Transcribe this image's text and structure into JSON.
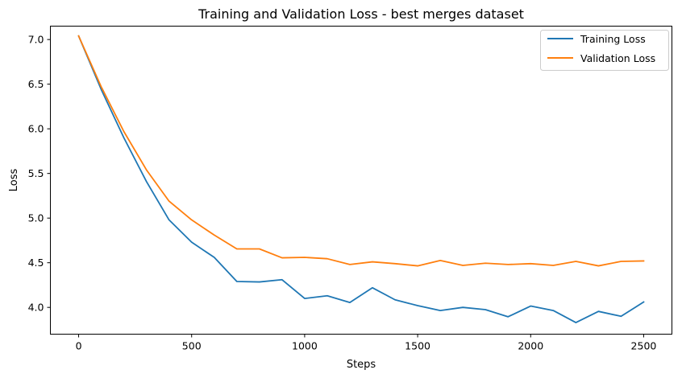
{
  "chart_data": {
    "type": "line",
    "title": "Training and Validation Loss - best merges dataset",
    "xlabel": "Steps",
    "ylabel": "Loss",
    "xlim": [
      -125,
      2625
    ],
    "ylim": [
      3.7,
      7.15
    ],
    "xticks": [
      0,
      500,
      1000,
      1500,
      2000,
      2500
    ],
    "yticks": [
      4.0,
      4.5,
      5.0,
      5.5,
      6.0,
      6.5,
      7.0
    ],
    "xtick_labels": [
      "0",
      "500",
      "1000",
      "1500",
      "2000",
      "2500"
    ],
    "ytick_labels": [
      "4.0",
      "4.5",
      "5.0",
      "5.5",
      "6.0",
      "6.5",
      "7.0"
    ],
    "grid": false,
    "legend_position": "upper-right",
    "x": [
      0,
      100,
      200,
      300,
      400,
      500,
      600,
      700,
      800,
      900,
      1000,
      1100,
      1200,
      1300,
      1400,
      1500,
      1600,
      1700,
      1800,
      1900,
      2000,
      2100,
      2200,
      2300,
      2400,
      2500
    ],
    "series": [
      {
        "name": "Training Loss",
        "color": "#1f77b4",
        "values": [
          7.04,
          6.44,
          5.9,
          5.41,
          4.98,
          4.73,
          4.56,
          4.29,
          4.285,
          4.31,
          4.1,
          4.13,
          4.055,
          4.22,
          4.085,
          4.02,
          3.965,
          4.0,
          3.975,
          3.895,
          4.015,
          3.965,
          3.83,
          3.955,
          3.9,
          4.06
        ]
      },
      {
        "name": "Validation Loss",
        "color": "#ff7f0e",
        "values": [
          7.04,
          6.47,
          5.97,
          5.54,
          5.19,
          4.98,
          4.81,
          4.655,
          4.655,
          4.555,
          4.56,
          4.545,
          4.48,
          4.51,
          4.49,
          4.465,
          4.525,
          4.47,
          4.495,
          4.48,
          4.49,
          4.47,
          4.515,
          4.465,
          4.515,
          4.52
        ]
      }
    ]
  }
}
